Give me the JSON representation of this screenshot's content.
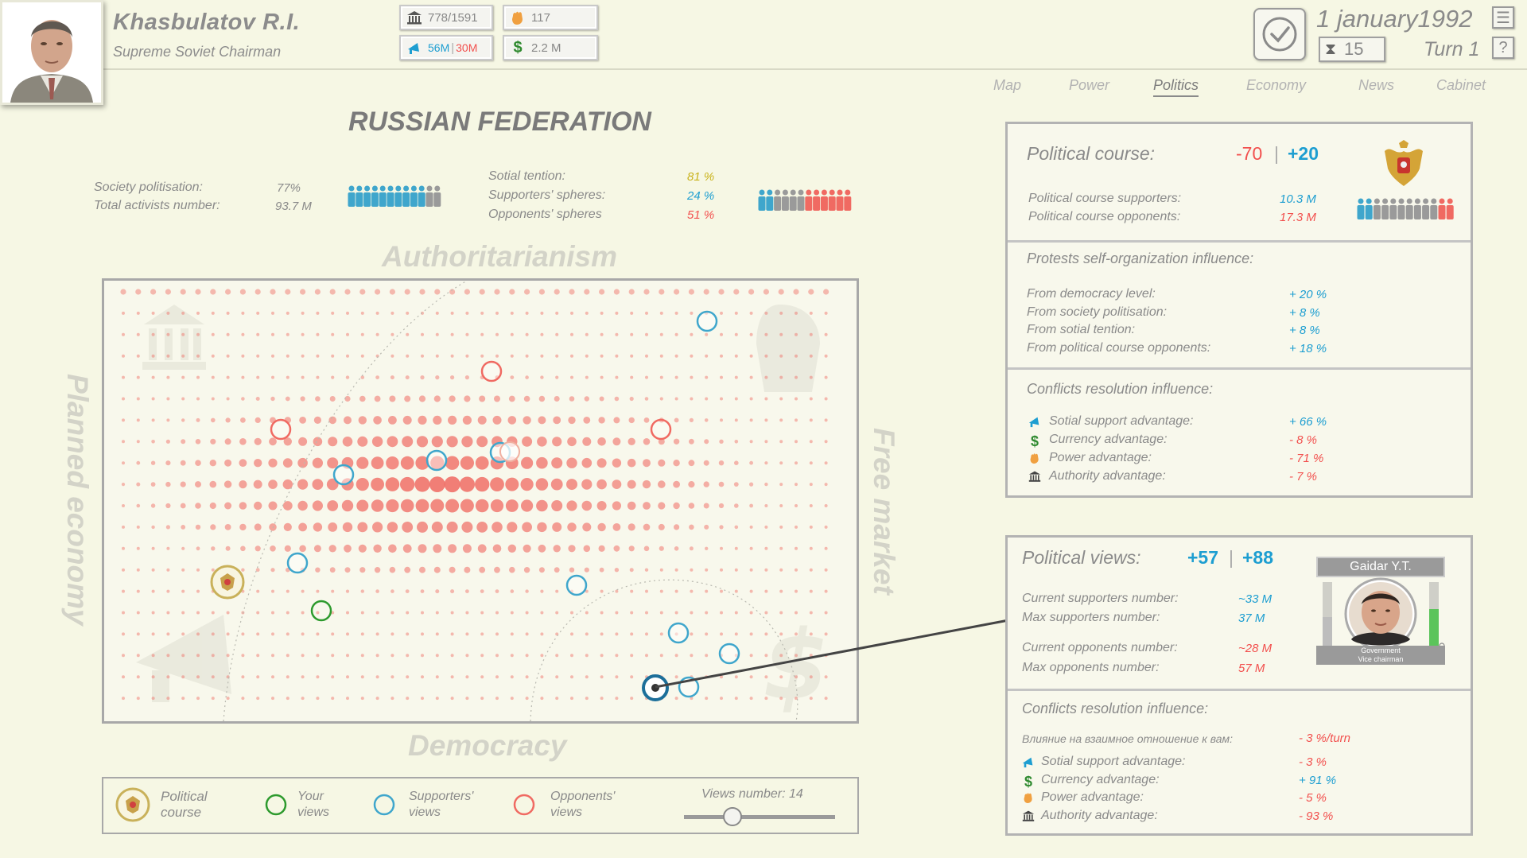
{
  "leader": {
    "name": "Khasbulatov R.I.",
    "title": "Supreme Soviet Chairman"
  },
  "resources": {
    "authority": "778/1591",
    "power": "117",
    "support_a": "56M",
    "support_b": "30M",
    "currency": "2.2 M"
  },
  "turn_info": {
    "date": "1 january1992",
    "timer": "15",
    "turn": "Turn 1"
  },
  "tabs": [
    "Map",
    "Power",
    "Politics",
    "Economy",
    "News",
    "Cabinet"
  ],
  "country": "RUSSIAN FEDERATION",
  "society": {
    "politisation_label": "Society politisation:",
    "politisation_value": "77%",
    "activists_label": "Total activists number:",
    "activists_value": "93.7 M",
    "tension_label": "Sotial tention:",
    "tension_value": "81 %",
    "supporters_label": "Supporters' spheres:",
    "supporters_value": "24 %",
    "opponents_label": "Opponents' spheres",
    "opponents_value": "51 %"
  },
  "axes": {
    "top": "Authoritarianism",
    "bottom": "Democracy",
    "left": "Planned economy",
    "right": "Free market"
  },
  "legend": {
    "political_course": "Political course",
    "your_views": "Your views",
    "supporters_views": "Supporters' views",
    "opponents_views": "Opponents' views",
    "views_number": "Views number: 14",
    "slider_fraction": 0.32
  },
  "political_course": {
    "title": "Political course:",
    "neg": "-70",
    "pos": "+20",
    "supporters_label": "Political course supporters:",
    "supporters_value": "10.3 M",
    "opponents_label": "Political course opponents:",
    "opponents_value": "17.3 M",
    "protests_title": "Protests self-organization influence:",
    "protests": [
      {
        "label": "From democracy level:",
        "value": "+ 20 %"
      },
      {
        "label": "From society politisation:",
        "value": "+ 8 %"
      },
      {
        "label": "From sotial tention:",
        "value": "+ 8 %"
      },
      {
        "label": "From political course opponents:",
        "value": "+ 18 %"
      }
    ],
    "conflicts_title": "Conflicts resolution influence:",
    "conflicts": [
      {
        "icon": "megaphone-icon",
        "label": "Sotial support advantage:",
        "value": "+ 66 %"
      },
      {
        "icon": "dollar-icon",
        "label": "Currency advantage:",
        "value": "- 8 %"
      },
      {
        "icon": "fist-icon",
        "label": "Power advantage:",
        "value": "- 71 %"
      },
      {
        "icon": "institution-icon",
        "label": "Authority advantage:",
        "value": "- 7 %"
      }
    ]
  },
  "political_views": {
    "title": "Political views:",
    "val1": "+57",
    "val2": "+88",
    "person_name": "Gaidar Y.T.",
    "person_role_1": "Government",
    "person_role_2": "Vice chairman",
    "current_supporters_label": "Current supporters number:",
    "current_supporters_value": "~33 M",
    "max_supporters_label": "Max supporters number:",
    "max_supporters_value": "37 M",
    "current_opponents_label": "Current opponents number:",
    "current_opponents_value": "~28 M",
    "max_opponents_label": "Max opponents number:",
    "max_opponents_value": "57 M",
    "conflicts_title": "Conflicts resolution influence:",
    "relation_label": "Влияние на взаимное отношение к вам:",
    "relation_value": "- 3 %/turn",
    "conflicts": [
      {
        "icon": "megaphone-icon",
        "label": "Sotial support advantage:",
        "value": "- 3 %"
      },
      {
        "icon": "dollar-icon",
        "label": "Currency advantage:",
        "value": "+ 91 %"
      },
      {
        "icon": "fist-icon",
        "label": "Power advantage:",
        "value": "- 5 %"
      },
      {
        "icon": "institution-icon",
        "label": "Authority advantage:",
        "value": "- 93 %"
      }
    ]
  },
  "colors": {
    "supporter": "#3fa6cc",
    "opponent": "#f06a62",
    "own": "#2d9a2d",
    "course": "#c9b15a"
  }
}
